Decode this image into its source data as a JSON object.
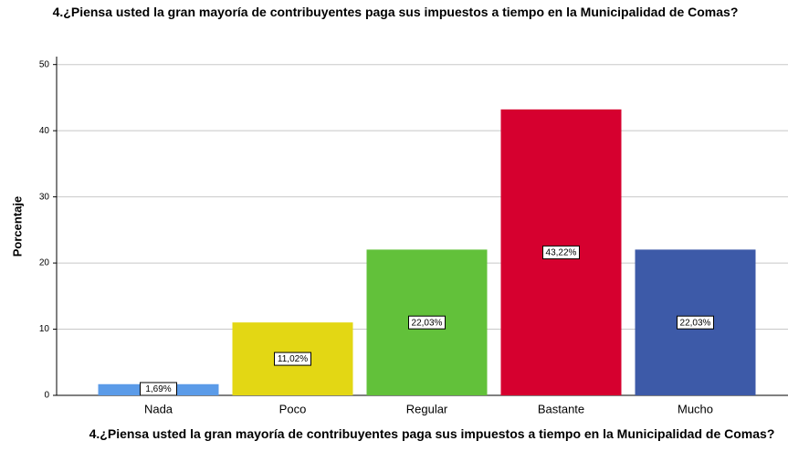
{
  "chart_data": {
    "type": "bar",
    "title": "4.¿Piensa usted la gran mayoría de contribuyentes paga sus impuestos a tiempo en la Municipalidad de Comas?",
    "x_label": "4.¿Piensa usted la gran mayoría de contribuyentes paga sus impuestos a tiempo en la Municipalidad de Comas?",
    "y_label": "Porcentaje",
    "categories": [
      "Nada",
      "Poco",
      "Regular",
      "Bastante",
      "Mucho"
    ],
    "values": [
      1.69,
      11.02,
      22.03,
      43.22,
      22.03
    ],
    "value_labels": [
      "1,69%",
      "11,02%",
      "22,03%",
      "43,22%",
      "22,03%"
    ],
    "colors": [
      "#5b9be8",
      "#e3d714",
      "#62c13a",
      "#d6002f",
      "#3d5aa8"
    ],
    "ylim": [
      0,
      51.2
    ],
    "yticks": [
      0,
      10,
      20,
      30,
      40,
      50
    ],
    "grid": true
  }
}
